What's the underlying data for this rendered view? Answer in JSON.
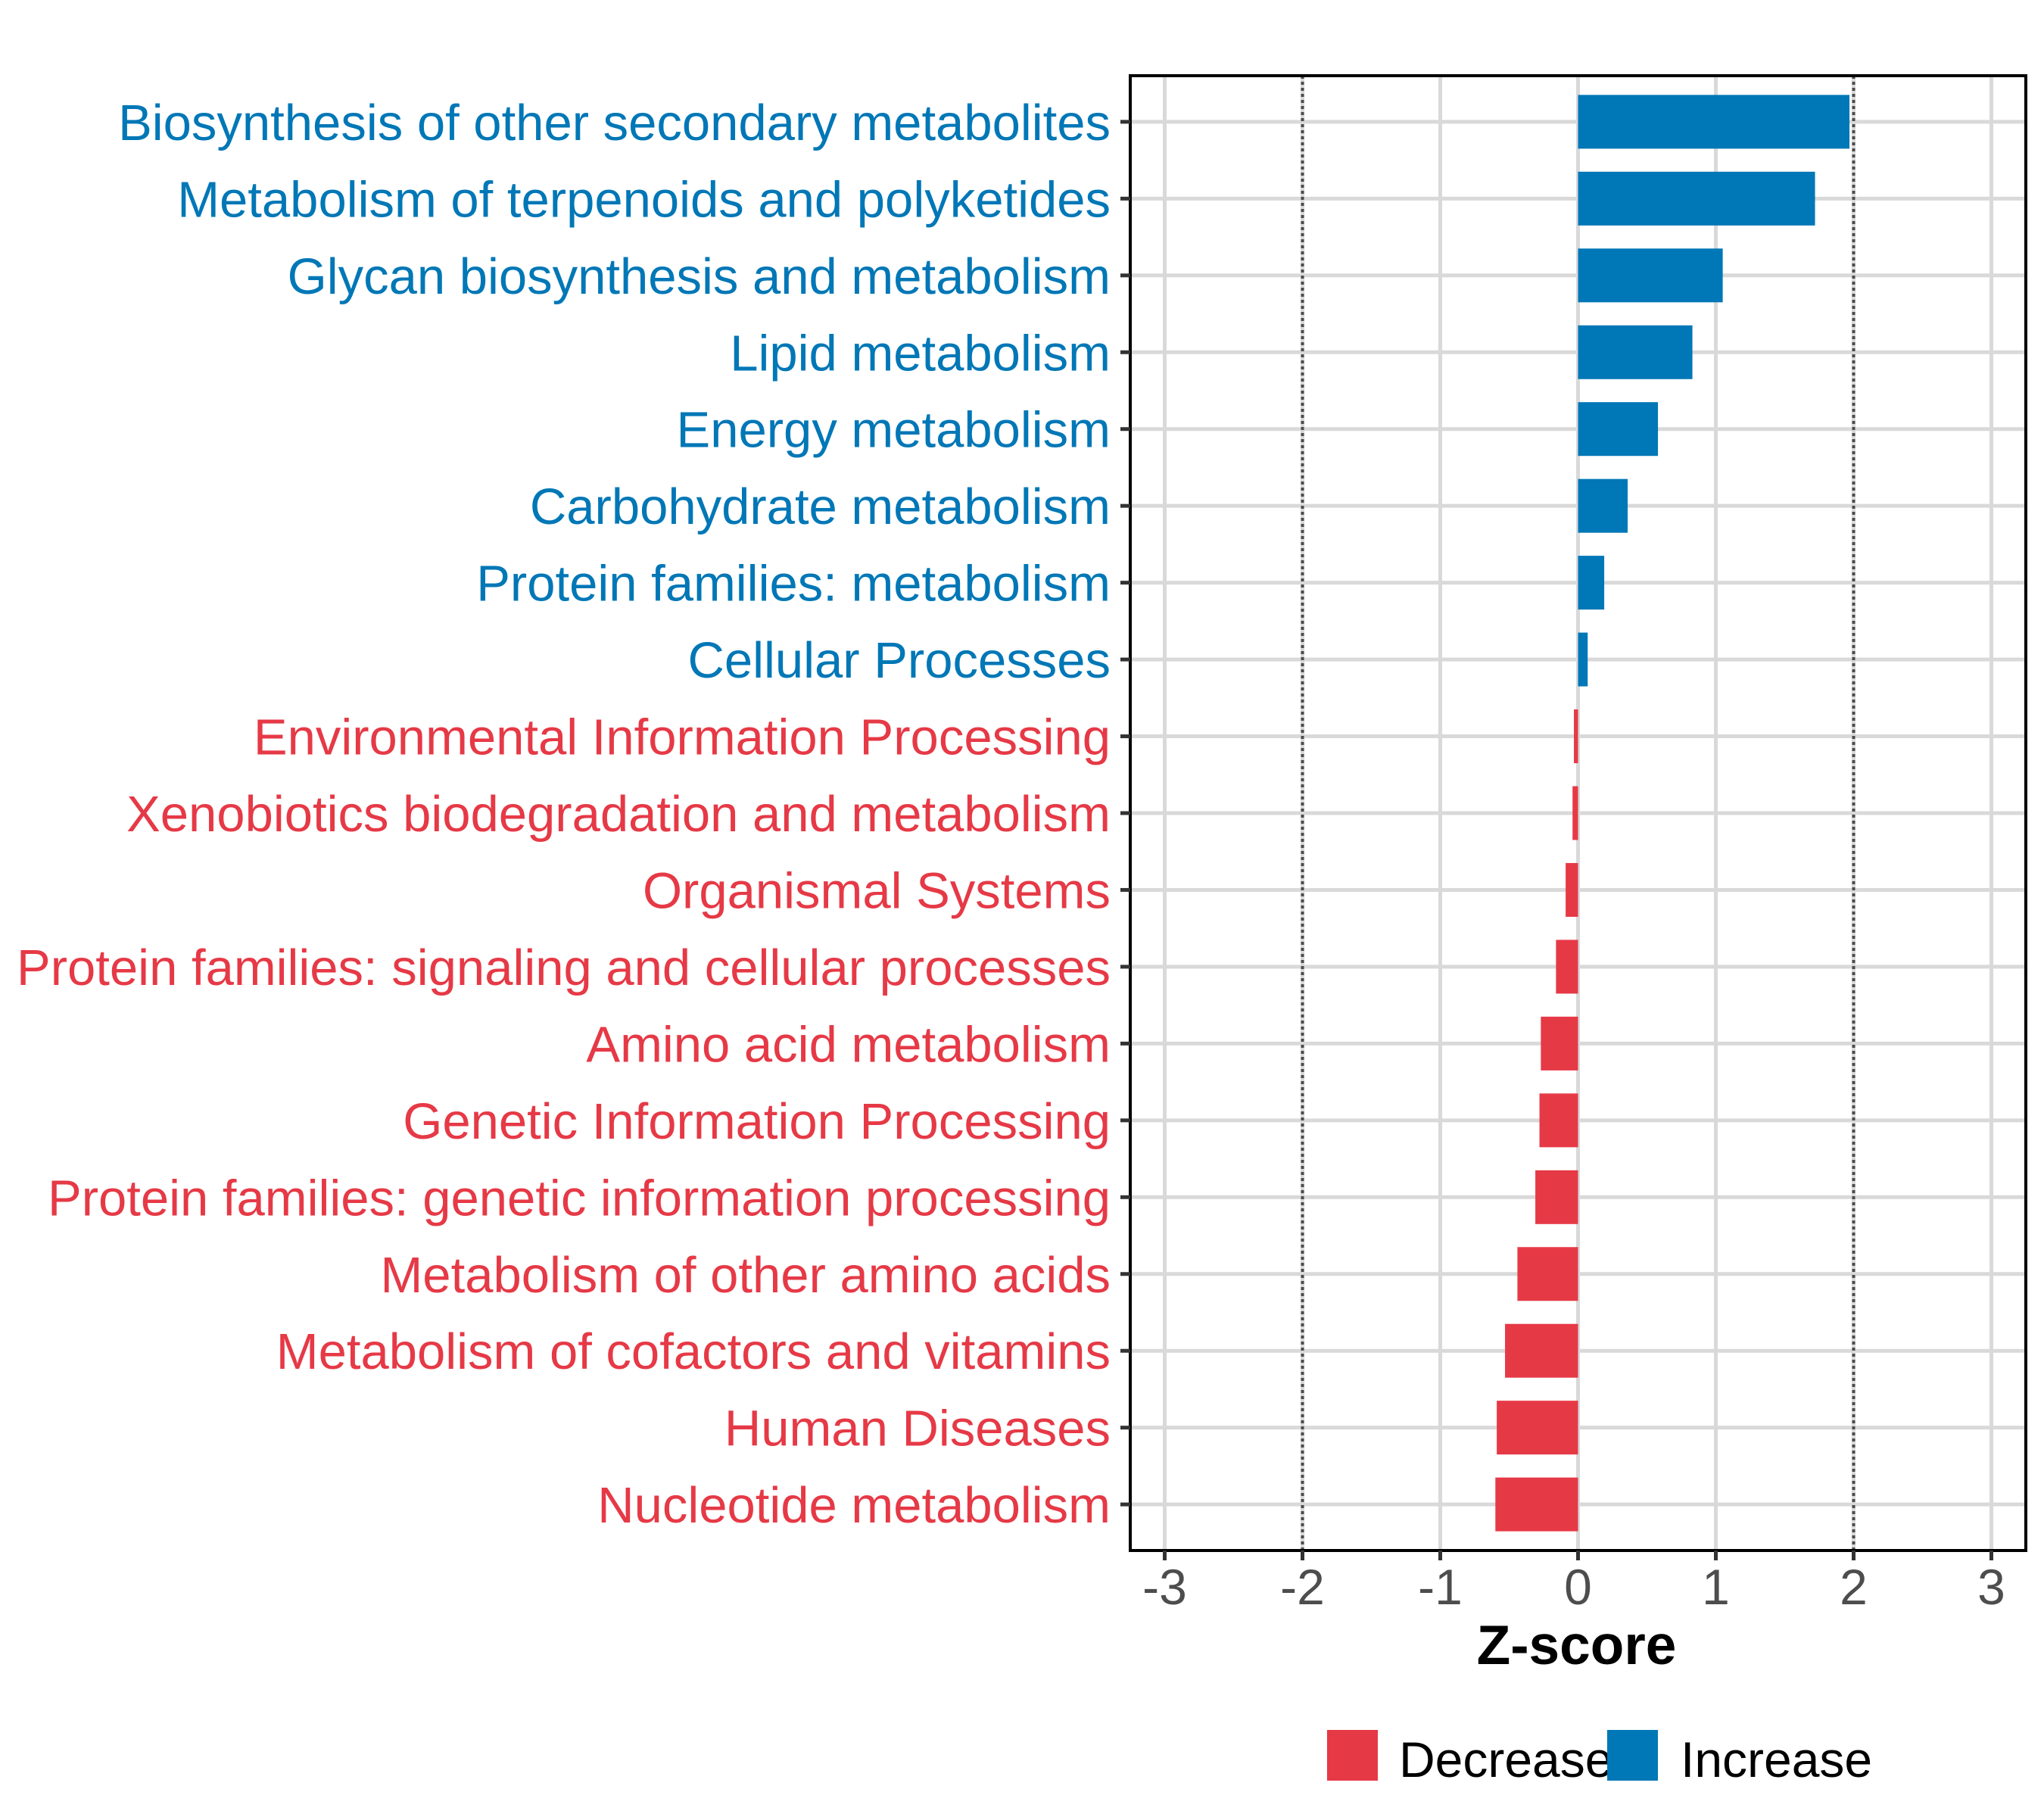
{
  "chart_data": {
    "type": "bar",
    "orientation": "horizontal",
    "title": "",
    "xlabel": "Z-score",
    "ylabel": "",
    "xlim": [
      -3.25,
      3.25
    ],
    "xticks": [
      -3,
      -2,
      -1,
      0,
      1,
      2,
      3
    ],
    "xtick_labels": [
      "-3",
      "-2",
      "-1",
      "0",
      "1",
      "2",
      "3"
    ],
    "reference_lines": [
      -2,
      2
    ],
    "grid": true,
    "legend_position": "bottom",
    "colors": {
      "Decrease": "#e63946",
      "Increase": "#0077b6"
    },
    "legend": [
      {
        "label": "Decrease",
        "color": "#e63946"
      },
      {
        "label": "Increase",
        "color": "#0077b6"
      }
    ],
    "categories": [
      "Biosynthesis of other secondary metabolites",
      "Metabolism of terpenoids and polyketides",
      "Glycan biosynthesis and metabolism",
      "Lipid metabolism",
      "Energy metabolism",
      "Carbohydrate metabolism",
      "Protein families: metabolism",
      "Cellular Processes",
      "Environmental Information Processing",
      "Xenobiotics biodegradation and metabolism",
      "Organismal Systems",
      "Protein families: signaling and cellular processes",
      "Amino acid metabolism",
      "Genetic Information Processing",
      "Protein families: genetic information processing",
      "Metabolism of other amino acids",
      "Metabolism of cofactors and vitamins",
      "Human Diseases",
      "Nucleotide metabolism"
    ],
    "values": [
      1.97,
      1.72,
      1.05,
      0.83,
      0.58,
      0.36,
      0.19,
      0.07,
      -0.03,
      -0.04,
      -0.09,
      -0.16,
      -0.27,
      -0.28,
      -0.31,
      -0.44,
      -0.53,
      -0.59,
      -0.6
    ],
    "groups": [
      "Increase",
      "Increase",
      "Increase",
      "Increase",
      "Increase",
      "Increase",
      "Increase",
      "Increase",
      "Decrease",
      "Decrease",
      "Decrease",
      "Decrease",
      "Decrease",
      "Decrease",
      "Decrease",
      "Decrease",
      "Decrease",
      "Decrease",
      "Decrease"
    ]
  }
}
